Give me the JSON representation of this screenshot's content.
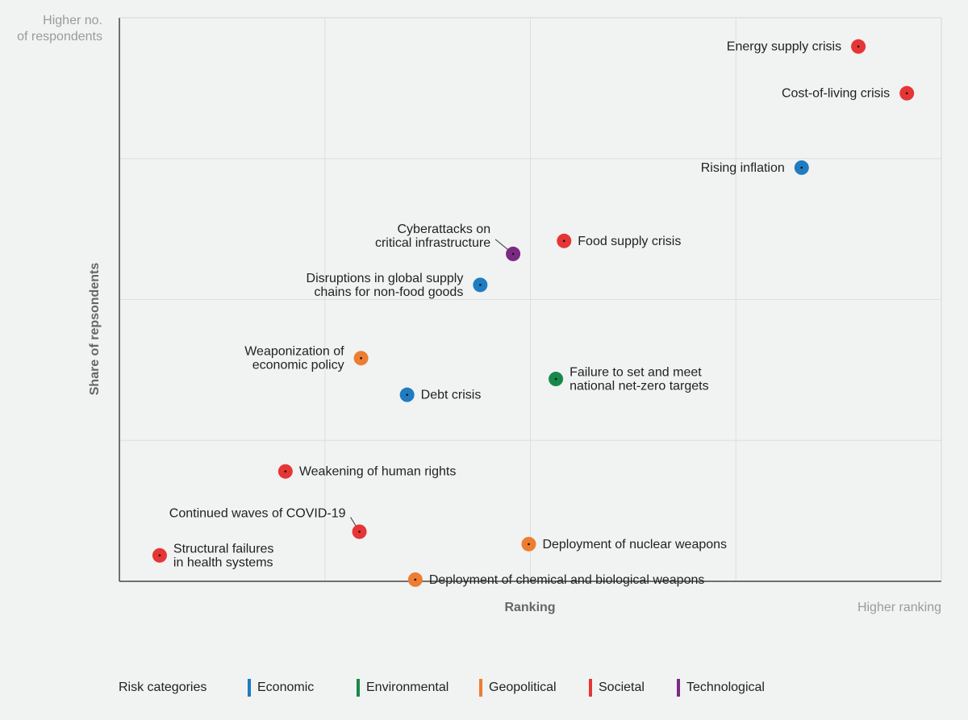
{
  "notes": {
    "top_left": [
      "Higher no.",
      "of respondents"
    ],
    "bottom_right": "Higher ranking"
  },
  "legend": {
    "title": "Risk categories",
    "items": [
      {
        "label": "Economic",
        "color": "#1f7cc1"
      },
      {
        "label": "Environmental",
        "color": "#16894a"
      },
      {
        "label": "Geopolitical",
        "color": "#ed7d31"
      },
      {
        "label": "Societal",
        "color": "#e63535"
      },
      {
        "label": "Technological",
        "color": "#7b2a82"
      }
    ]
  },
  "chart_data": {
    "type": "scatter",
    "title": "",
    "xlabel": "Ranking",
    "ylabel": "Share of repsondents",
    "xlim": [
      0,
      100
    ],
    "ylim": [
      0,
      100
    ],
    "grid": true,
    "categories": {
      "Economic": "#1f7cc1",
      "Environmental": "#16894a",
      "Geopolitical": "#ed7d31",
      "Societal": "#e63535",
      "Technological": "#7b2a82"
    },
    "points": [
      {
        "label": [
          "Energy supply crisis"
        ],
        "category": "Societal",
        "x": 89.9,
        "y": 94.9,
        "label_side": "left"
      },
      {
        "label": [
          "Cost-of-living crisis"
        ],
        "category": "Societal",
        "x": 95.8,
        "y": 86.6,
        "label_side": "left"
      },
      {
        "label": [
          "Rising inflation"
        ],
        "category": "Economic",
        "x": 83.0,
        "y": 73.4,
        "label_side": "left"
      },
      {
        "label": [
          "Food supply crisis"
        ],
        "category": "Societal",
        "x": 54.1,
        "y": 60.4,
        "label_side": "right"
      },
      {
        "label": [
          "Cyberattacks on",
          "critical infrastructure"
        ],
        "category": "Technological",
        "x": 47.9,
        "y": 58.1,
        "label_side": "left",
        "leader": true
      },
      {
        "label": [
          "Disruptions in global supply",
          "chains for non-food goods"
        ],
        "category": "Economic",
        "x": 43.9,
        "y": 52.6,
        "label_side": "left"
      },
      {
        "label": [
          "Weaponization of",
          "economic policy"
        ],
        "category": "Geopolitical",
        "x": 29.4,
        "y": 39.6,
        "label_side": "left"
      },
      {
        "label": [
          "Failure to set and meet",
          "national net-zero targets"
        ],
        "category": "Environmental",
        "x": 53.1,
        "y": 35.9,
        "label_side": "right"
      },
      {
        "label": [
          "Debt crisis"
        ],
        "category": "Economic",
        "x": 35.0,
        "y": 33.1,
        "label_side": "right"
      },
      {
        "label": [
          "Weakening of human rights"
        ],
        "category": "Societal",
        "x": 20.2,
        "y": 19.5,
        "label_side": "right"
      },
      {
        "label": [
          "Continued waves of COVID-19"
        ],
        "category": "Societal",
        "x": 29.2,
        "y": 8.8,
        "label_side": "left",
        "leader": true
      },
      {
        "label": [
          "Deployment of nuclear weapons"
        ],
        "category": "Geopolitical",
        "x": 49.8,
        "y": 6.6,
        "label_side": "right"
      },
      {
        "label": [
          "Structural failures",
          "in health systems"
        ],
        "category": "Societal",
        "x": 4.9,
        "y": 4.6,
        "label_side": "right"
      },
      {
        "label": [
          "Deployment of chemical and biological weapons"
        ],
        "category": "Geopolitical",
        "x": 36.0,
        "y": 0.3,
        "label_side": "right"
      }
    ]
  }
}
